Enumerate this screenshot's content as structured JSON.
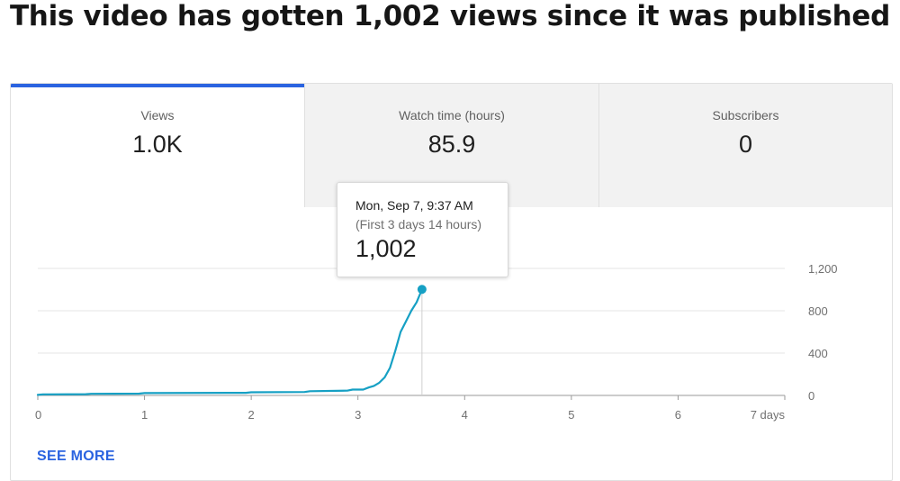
{
  "headline": "This video has gotten 1,002 views since it was published",
  "tabs": [
    {
      "label": "Views",
      "value": "1.0K",
      "selected": true
    },
    {
      "label": "Watch time (hours)",
      "value": "85.9",
      "selected": false
    },
    {
      "label": "Subscribers",
      "value": "0",
      "selected": false
    }
  ],
  "tooltip": {
    "date": "Mon, Sep 7, 9:37 AM",
    "subtitle": "(First 3 days 14 hours)",
    "value": "1,002"
  },
  "see_more": "SEE MORE",
  "colors": {
    "accent": "#2a63e0",
    "line": "#16a0c4"
  },
  "chart_data": {
    "type": "line",
    "xlabel": "",
    "ylabel": "",
    "xlim": [
      0,
      7
    ],
    "ylim": [
      0,
      1200
    ],
    "x_ticks": [
      0,
      1,
      2,
      3,
      4,
      5,
      6,
      7
    ],
    "x_tick_labels": [
      "0",
      "1",
      "2",
      "3",
      "4",
      "5",
      "6",
      "7 days"
    ],
    "y_ticks": [
      0,
      400,
      800,
      1200
    ],
    "y_tick_labels": [
      "0",
      "400",
      "800",
      "1,200"
    ],
    "grid": true,
    "series": [
      {
        "x": [
          0,
          0.05,
          0.1,
          0.45,
          0.5,
          0.95,
          1.0,
          1.95,
          2.0,
          2.5,
          2.55,
          2.9,
          2.95,
          3.05,
          3.1,
          3.15,
          3.2,
          3.25,
          3.3,
          3.35,
          3.4,
          3.45,
          3.5,
          3.55,
          3.6
        ],
        "y": [
          5,
          10,
          10,
          12,
          15,
          17,
          22,
          25,
          30,
          32,
          40,
          45,
          55,
          55,
          75,
          90,
          120,
          170,
          260,
          420,
          600,
          700,
          800,
          880,
          1002
        ]
      }
    ],
    "highlight": {
      "x": 3.6,
      "y": 1002
    }
  }
}
